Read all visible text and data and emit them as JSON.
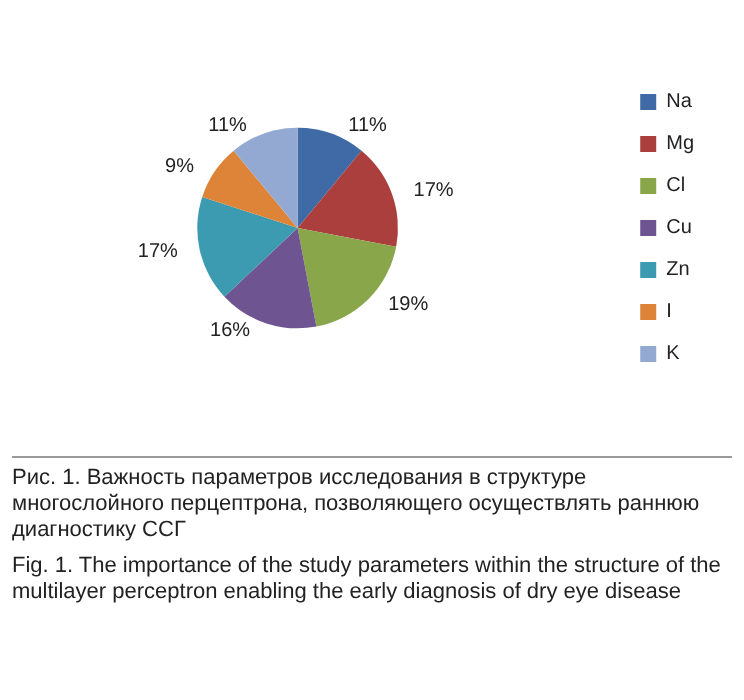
{
  "chart_data": {
    "type": "pie",
    "categories": [
      "Na",
      "Mg",
      "Cl",
      "Cu",
      "Zn",
      "I",
      "K"
    ],
    "values": [
      11,
      17,
      19,
      16,
      17,
      9,
      11
    ],
    "colors": [
      "#3f6aa6",
      "#aa3f3d",
      "#89a64b",
      "#6f5492",
      "#3c9bb0",
      "#de8438",
      "#93a9d2"
    ],
    "value_labels": [
      "11%",
      "17%",
      "19%",
      "16%",
      "17%",
      "9%",
      "11%"
    ],
    "legend": "right",
    "annotations": [
      "Рис. 1. Важность параметров исследования в структуре многослойного перцептрона, позволяющего осуществлять раннюю диагностику ССГ",
      "Fig. 1. The importance of the study parameters within the structure of the multilayer perceptron enabling the early diagnosis of dry eye disease"
    ]
  }
}
